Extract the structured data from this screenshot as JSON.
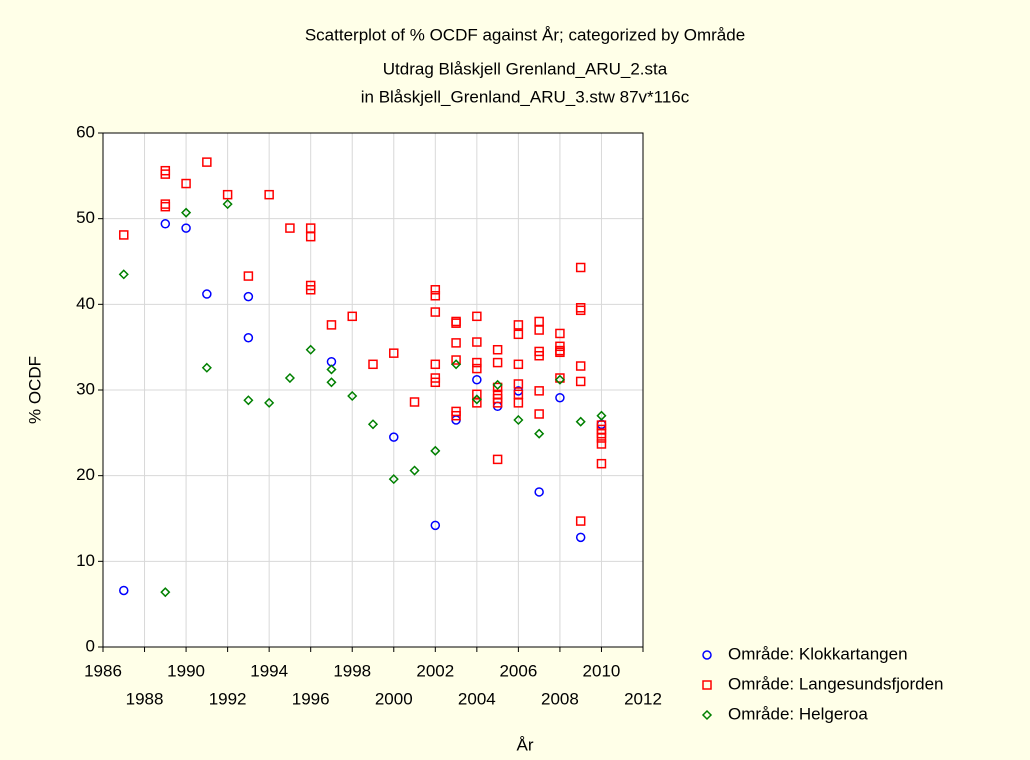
{
  "chart_data": {
    "type": "scatter",
    "title": "Scatterplot of % OCDF against År; categorized by Område",
    "subtitle": [
      "Utdrag Blåskjell Grenland_ARU_2.sta",
      "in Blåskjell_Grenland_ARU_3.stw 87v*116c"
    ],
    "x_label": "År",
    "y_label": "% OCDF",
    "xlim": [
      1986,
      2012
    ],
    "xticks": [
      1986,
      1988,
      1990,
      1992,
      1994,
      1996,
      1998,
      2000,
      2002,
      2004,
      2006,
      2008,
      2010,
      2012
    ],
    "ylim": [
      0,
      60
    ],
    "yticks": [
      0,
      10,
      20,
      30,
      40,
      50,
      60
    ],
    "grid": true,
    "legend": "bottom-right",
    "series": [
      {
        "name": "Område: Klokkartangen",
        "color": "#0000ff",
        "marker": "circle",
        "x": [
          1987,
          1989,
          1990,
          1991,
          1993,
          1993,
          1997,
          2000,
          2002,
          2003,
          2004,
          2005,
          2006,
          2007,
          2008,
          2009,
          2010
        ],
        "y": [
          6.6,
          49.4,
          48.9,
          41.2,
          40.9,
          36.1,
          33.3,
          24.5,
          14.2,
          26.5,
          31.2,
          28.1,
          29.9,
          18.1,
          29.1,
          12.8,
          26.0
        ]
      },
      {
        "name": "Område: Langesundsfjorden",
        "color": "#ff0000",
        "marker": "square",
        "x": [
          1987,
          1989,
          1989,
          1989,
          1989,
          1990,
          1991,
          1992,
          1993,
          1994,
          1995,
          1996,
          1996,
          1996,
          1996,
          1997,
          1998,
          1999,
          2000,
          2001,
          2002,
          2002,
          2002,
          2002,
          2002,
          2002,
          2003,
          2003,
          2003,
          2003,
          2003,
          2003,
          2004,
          2004,
          2004,
          2004,
          2004,
          2004,
          2005,
          2005,
          2005,
          2005,
          2005,
          2005,
          2005,
          2006,
          2006,
          2006,
          2006,
          2006,
          2006,
          2007,
          2007,
          2007,
          2007,
          2007,
          2007,
          2008,
          2008,
          2008,
          2008,
          2008,
          2009,
          2009,
          2009,
          2009,
          2009,
          2009,
          2010,
          2010,
          2010,
          2010,
          2010,
          2010
        ],
        "y": [
          48.1,
          55.6,
          55.2,
          51.7,
          51.4,
          54.1,
          56.6,
          52.8,
          43.3,
          52.8,
          48.9,
          48.9,
          47.9,
          42.2,
          41.7,
          37.6,
          38.6,
          33.0,
          34.3,
          28.6,
          41.7,
          41.0,
          39.1,
          33.0,
          31.4,
          30.9,
          38.0,
          37.8,
          35.5,
          33.5,
          27.5,
          27.0,
          38.6,
          35.6,
          33.2,
          32.5,
          29.5,
          28.5,
          34.7,
          33.2,
          30.3,
          29.5,
          29.0,
          28.5,
          21.9,
          37.6,
          36.5,
          33.0,
          30.7,
          29.5,
          28.5,
          38.0,
          37.0,
          34.5,
          34.0,
          29.9,
          27.2,
          36.6,
          35.1,
          34.6,
          34.4,
          31.4,
          44.3,
          39.6,
          39.3,
          32.8,
          31.0,
          14.7,
          25.9,
          25.4,
          24.9,
          24.4,
          23.7,
          21.4
        ]
      },
      {
        "name": "Område: Helgeroa",
        "color": "#008000",
        "marker": "diamond",
        "x": [
          1987,
          1989,
          1990,
          1991,
          1992,
          1993,
          1994,
          1995,
          1996,
          1997,
          1997,
          1998,
          1999,
          2000,
          2001,
          2002,
          2003,
          2004,
          2005,
          2006,
          2007,
          2008,
          2009,
          2010
        ],
        "y": [
          43.5,
          6.4,
          50.7,
          32.6,
          51.7,
          28.8,
          28.5,
          31.4,
          34.7,
          32.4,
          30.9,
          29.3,
          26.0,
          19.6,
          20.6,
          22.9,
          33.0,
          28.9,
          30.6,
          26.5,
          24.9,
          31.2,
          26.3,
          27.0
        ]
      }
    ]
  }
}
